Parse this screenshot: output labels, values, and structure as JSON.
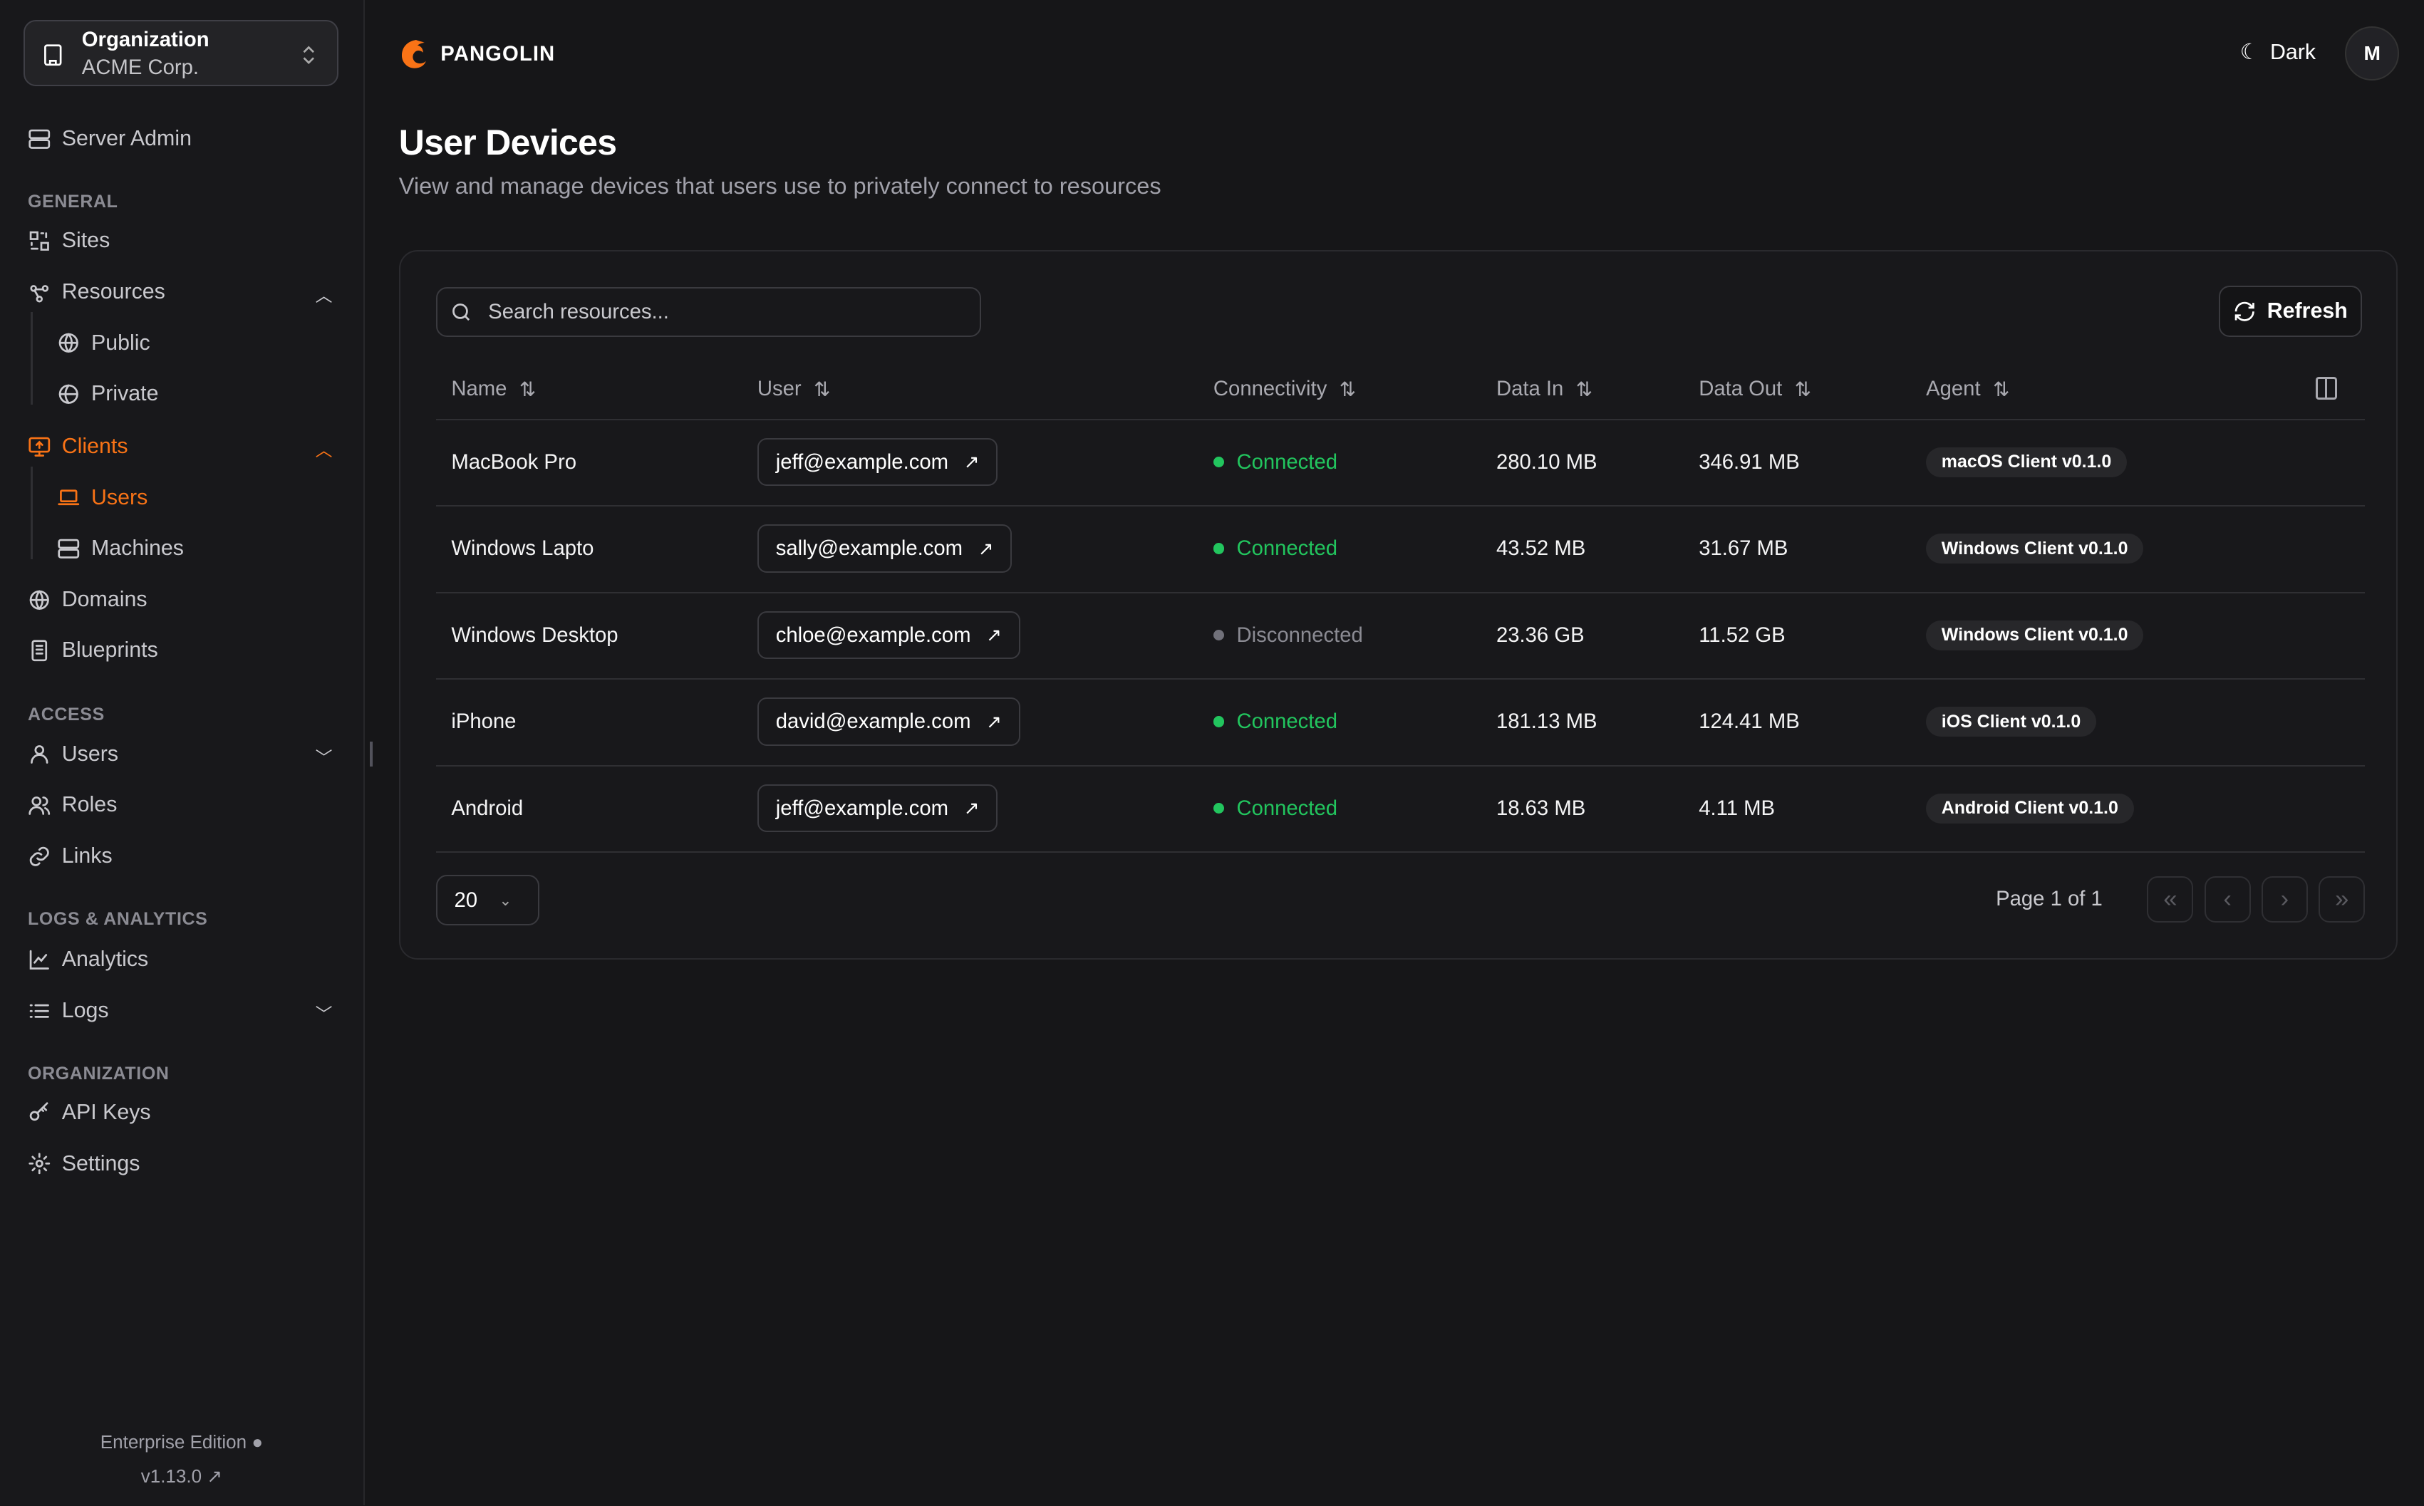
{
  "org": {
    "label": "Organization",
    "name": "ACME Corp."
  },
  "sidebar": {
    "server_admin": "Server Admin",
    "sections": [
      {
        "title": "GENERAL",
        "items": [
          {
            "label": "Sites",
            "icon": "sites-icon"
          },
          {
            "label": "Resources",
            "icon": "resources-icon",
            "chevron": "up",
            "children": [
              {
                "label": "Public",
                "icon": "globe-icon"
              },
              {
                "label": "Private",
                "icon": "globe-lock-icon"
              }
            ]
          },
          {
            "label": "Clients",
            "icon": "monitor-icon",
            "chevron": "up",
            "active": true,
            "children": [
              {
                "label": "Users",
                "icon": "laptop-icon",
                "active": true
              },
              {
                "label": "Machines",
                "icon": "server-icon"
              }
            ]
          },
          {
            "label": "Domains",
            "icon": "globe-icon"
          },
          {
            "label": "Blueprints",
            "icon": "document-icon"
          }
        ]
      },
      {
        "title": "ACCESS",
        "items": [
          {
            "label": "Users",
            "icon": "user-icon",
            "chevron": "down"
          },
          {
            "label": "Roles",
            "icon": "users-icon"
          },
          {
            "label": "Links",
            "icon": "link-icon"
          }
        ]
      },
      {
        "title": "LOGS & ANALYTICS",
        "items": [
          {
            "label": "Analytics",
            "icon": "chart-icon"
          },
          {
            "label": "Logs",
            "icon": "list-icon",
            "chevron": "down"
          }
        ]
      },
      {
        "title": "ORGANIZATION",
        "items": [
          {
            "label": "API Keys",
            "icon": "key-icon"
          },
          {
            "label": "Settings",
            "icon": "gear-icon"
          }
        ]
      }
    ],
    "edition": "Enterprise Edition",
    "version": "v1.13.0"
  },
  "header": {
    "brand": "PANGOLIN",
    "theme": "Dark",
    "avatar": "M"
  },
  "page": {
    "title": "User Devices",
    "subtitle": "View and manage devices that users use to privately connect to resources"
  },
  "toolbar": {
    "search_placeholder": "Search resources...",
    "refresh": "Refresh"
  },
  "table": {
    "columns": [
      "Name",
      "User",
      "Connectivity",
      "Data In",
      "Data Out",
      "Agent"
    ],
    "rows": [
      {
        "name": "MacBook Pro",
        "user": "jeff@example.com",
        "status": "Connected",
        "data_in": "280.10 MB",
        "data_out": "346.91 MB",
        "agent": "macOS Client v0.1.0"
      },
      {
        "name": "Windows Lapto",
        "user": "sally@example.com",
        "status": "Connected",
        "data_in": "43.52 MB",
        "data_out": "31.67 MB",
        "agent": "Windows Client v0.1.0"
      },
      {
        "name": "Windows Desktop",
        "user": "chloe@example.com",
        "status": "Disconnected",
        "data_in": "23.36 GB",
        "data_out": "11.52 GB",
        "agent": "Windows Client v0.1.0"
      },
      {
        "name": "iPhone",
        "user": "david@example.com",
        "status": "Connected",
        "data_in": "181.13 MB",
        "data_out": "124.41 MB",
        "agent": "iOS Client v0.1.0"
      },
      {
        "name": "Android",
        "user": "jeff@example.com",
        "status": "Connected",
        "data_in": "18.63 MB",
        "data_out": "4.11 MB",
        "agent": "Android Client v0.1.0"
      }
    ]
  },
  "pagination": {
    "page_size": "20",
    "page_info": "Page 1 of 1"
  },
  "colors": {
    "accent": "#f97316",
    "connected": "#22c55e",
    "disconnected": "#71717a"
  }
}
